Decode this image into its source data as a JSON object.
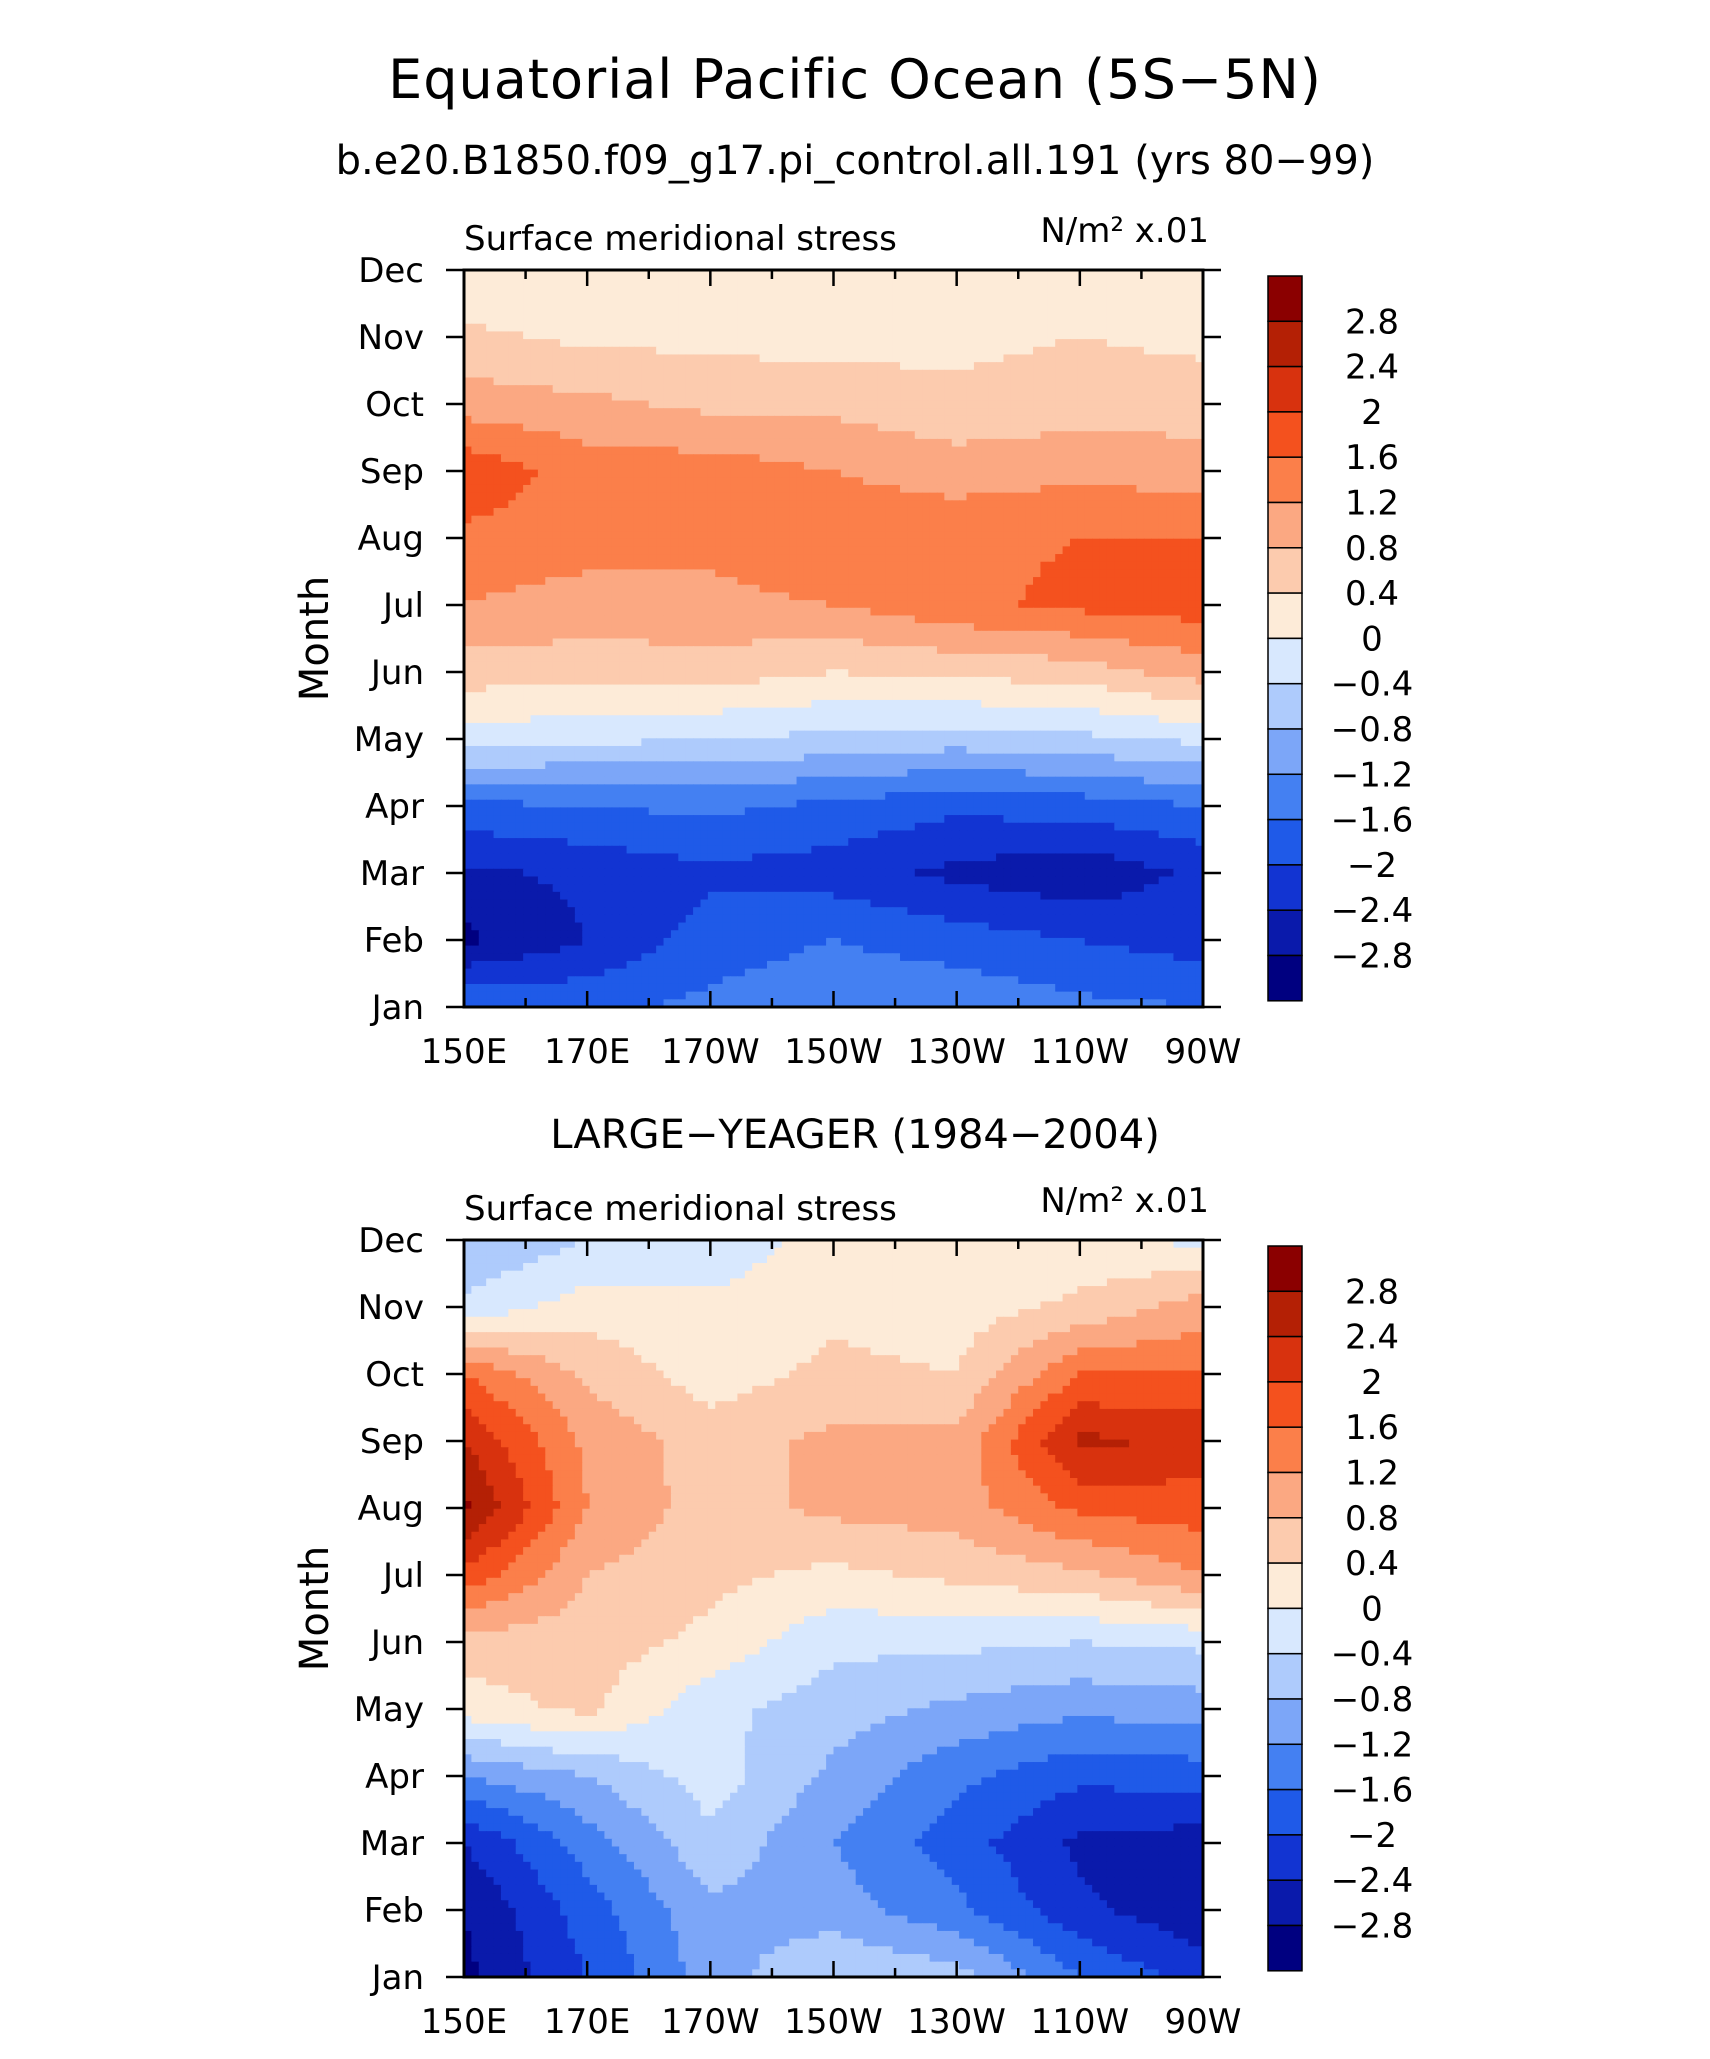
{
  "figure": {
    "title": "Equatorial Pacific Ocean (5S−5N)",
    "subtitle": "b.e20.B1850.f09_g17.pi_control.all.191 (yrs 80−99)"
  },
  "chart_data": [
    {
      "type": "heatmap",
      "panel_title": "",
      "left_label": "Surface meridional stress",
      "units_label": "N/m² x.01",
      "ylabel": "Month",
      "xlabel": "",
      "x_ticklabels": [
        "150E",
        "170E",
        "170W",
        "150W",
        "130W",
        "110W",
        "90W"
      ],
      "x_values_lon_east": [
        150,
        170,
        190,
        210,
        230,
        250,
        270
      ],
      "y_ticklabels": [
        "Jan",
        "Feb",
        "Mar",
        "Apr",
        "May",
        "Jun",
        "Jul",
        "Aug",
        "Sep",
        "Oct",
        "Nov",
        "Dec"
      ],
      "colorbar_ticklabels": [
        "2.8",
        "2.4",
        "2",
        "1.6",
        "1.2",
        "0.8",
        "0.4",
        "0",
        "−0.4",
        "−0.8",
        "−1.2",
        "−1.6",
        "−2",
        "−2.4",
        "−2.8"
      ],
      "z": [
        [
          -1.6,
          -1.7,
          -1.5,
          -1.3,
          -1.3,
          -1.5,
          -1.6
        ],
        [
          -2.9,
          -2.4,
          -1.8,
          -1.6,
          -1.8,
          -2.0,
          -2.2
        ],
        [
          -2.5,
          -2.3,
          -2.1,
          -2.2,
          -2.5,
          -2.7,
          -2.3
        ],
        [
          -1.7,
          -1.6,
          -1.5,
          -1.7,
          -1.9,
          -1.8,
          -1.6
        ],
        [
          -0.2,
          -0.3,
          -0.4,
          -0.5,
          -0.6,
          -0.5,
          -0.3
        ],
        [
          0.6,
          0.6,
          0.6,
          0.4,
          0.5,
          0.6,
          1.0
        ],
        [
          1.2,
          1.0,
          1.1,
          1.2,
          1.5,
          1.7,
          1.8
        ],
        [
          1.5,
          1.4,
          1.3,
          1.5,
          1.5,
          1.6,
          1.6
        ],
        [
          1.9,
          1.4,
          1.4,
          1.2,
          1.0,
          1.1,
          1.0
        ],
        [
          1.0,
          0.9,
          0.7,
          0.7,
          0.5,
          0.6,
          0.6
        ],
        [
          0.5,
          0.3,
          0.3,
          0.2,
          0.3,
          0.4,
          0.3
        ],
        [
          0.0,
          0.1,
          0.1,
          0.1,
          0.1,
          0.1,
          0.0
        ]
      ]
    },
    {
      "type": "heatmap",
      "panel_title": "LARGE−YEAGER (1984−2004)",
      "left_label": "Surface meridional stress",
      "units_label": "N/m² x.01",
      "ylabel": "Month",
      "xlabel": "",
      "x_ticklabels": [
        "150E",
        "170E",
        "170W",
        "150W",
        "130W",
        "110W",
        "90W"
      ],
      "x_values_lon_east": [
        150,
        170,
        190,
        210,
        230,
        250,
        270
      ],
      "y_ticklabels": [
        "Jan",
        "Feb",
        "Mar",
        "Apr",
        "May",
        "Jun",
        "Jul",
        "Aug",
        "Sep",
        "Oct",
        "Nov",
        "Dec"
      ],
      "colorbar_ticklabels": [
        "2.8",
        "2.4",
        "2",
        "1.6",
        "1.2",
        "0.8",
        "0.4",
        "0",
        "−0.4",
        "−0.8",
        "−1.2",
        "−1.6",
        "−2",
        "−2.4",
        "−2.8"
      ],
      "z": [
        [
          -2.9,
          -2.0,
          -1.0,
          -0.4,
          -0.6,
          -1.6,
          -2.2
        ],
        [
          -2.8,
          -1.8,
          -0.9,
          -1.0,
          -1.5,
          -2.3,
          -2.7
        ],
        [
          -2.4,
          -1.4,
          -0.5,
          -1.2,
          -1.8,
          -2.5,
          -2.6
        ],
        [
          -1.2,
          -0.8,
          -0.2,
          -0.9,
          -1.5,
          -1.9,
          -1.8
        ],
        [
          0.2,
          0.5,
          -0.3,
          -0.6,
          -0.9,
          -1.1,
          -1.0
        ],
        [
          0.6,
          0.6,
          0.3,
          -0.3,
          -0.3,
          -0.4,
          -0.3
        ],
        [
          1.9,
          0.8,
          0.5,
          0.3,
          0.5,
          0.7,
          1.2
        ],
        [
          2.9,
          1.2,
          0.6,
          0.9,
          1.0,
          1.7,
          1.8
        ],
        [
          2.4,
          1.1,
          0.6,
          0.9,
          0.9,
          2.5,
          2.3
        ],
        [
          1.6,
          0.7,
          0.2,
          0.5,
          0.4,
          1.6,
          1.6
        ],
        [
          -0.3,
          0.2,
          0.1,
          0.3,
          0.2,
          0.5,
          1.0
        ],
        [
          -0.8,
          -0.4,
          -0.3,
          0.2,
          0.1,
          0.1,
          -0.1
        ]
      ]
    }
  ],
  "colors": {
    "palette": [
      "#000080",
      "#0a1aab",
      "#1234d2",
      "#1f5ae8",
      "#4480f2",
      "#7ca6f8",
      "#aecbfc",
      "#d8e8fe",
      "#fdebd8",
      "#fccbae",
      "#fba882",
      "#fb7f4a",
      "#f4511e",
      "#d8320e",
      "#b42005",
      "#8b0000"
    ]
  }
}
